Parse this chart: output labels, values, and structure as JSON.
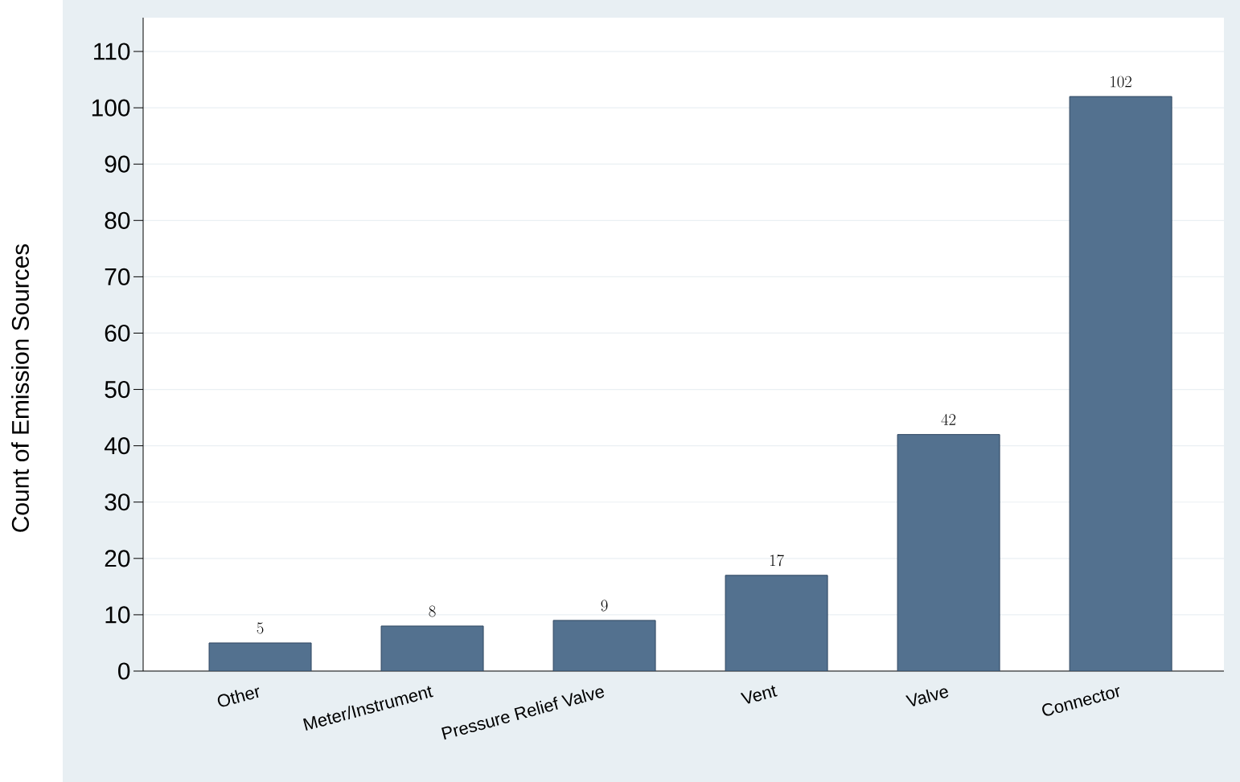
{
  "chart_data": {
    "type": "bar",
    "ylabel": "Count of Emission Sources",
    "categories": [
      "Other",
      "Meter/Instrument",
      "Pressure Relief Valve",
      "Vent",
      "Valve",
      "Connector"
    ],
    "values": [
      5,
      8,
      9,
      17,
      42,
      102
    ],
    "color": "#53718f",
    "ylim": [
      0,
      116
    ],
    "yticks": [
      0,
      10,
      20,
      30,
      40,
      50,
      60,
      70,
      80,
      90,
      100,
      110
    ],
    "grid": "y",
    "data_labels": true
  }
}
